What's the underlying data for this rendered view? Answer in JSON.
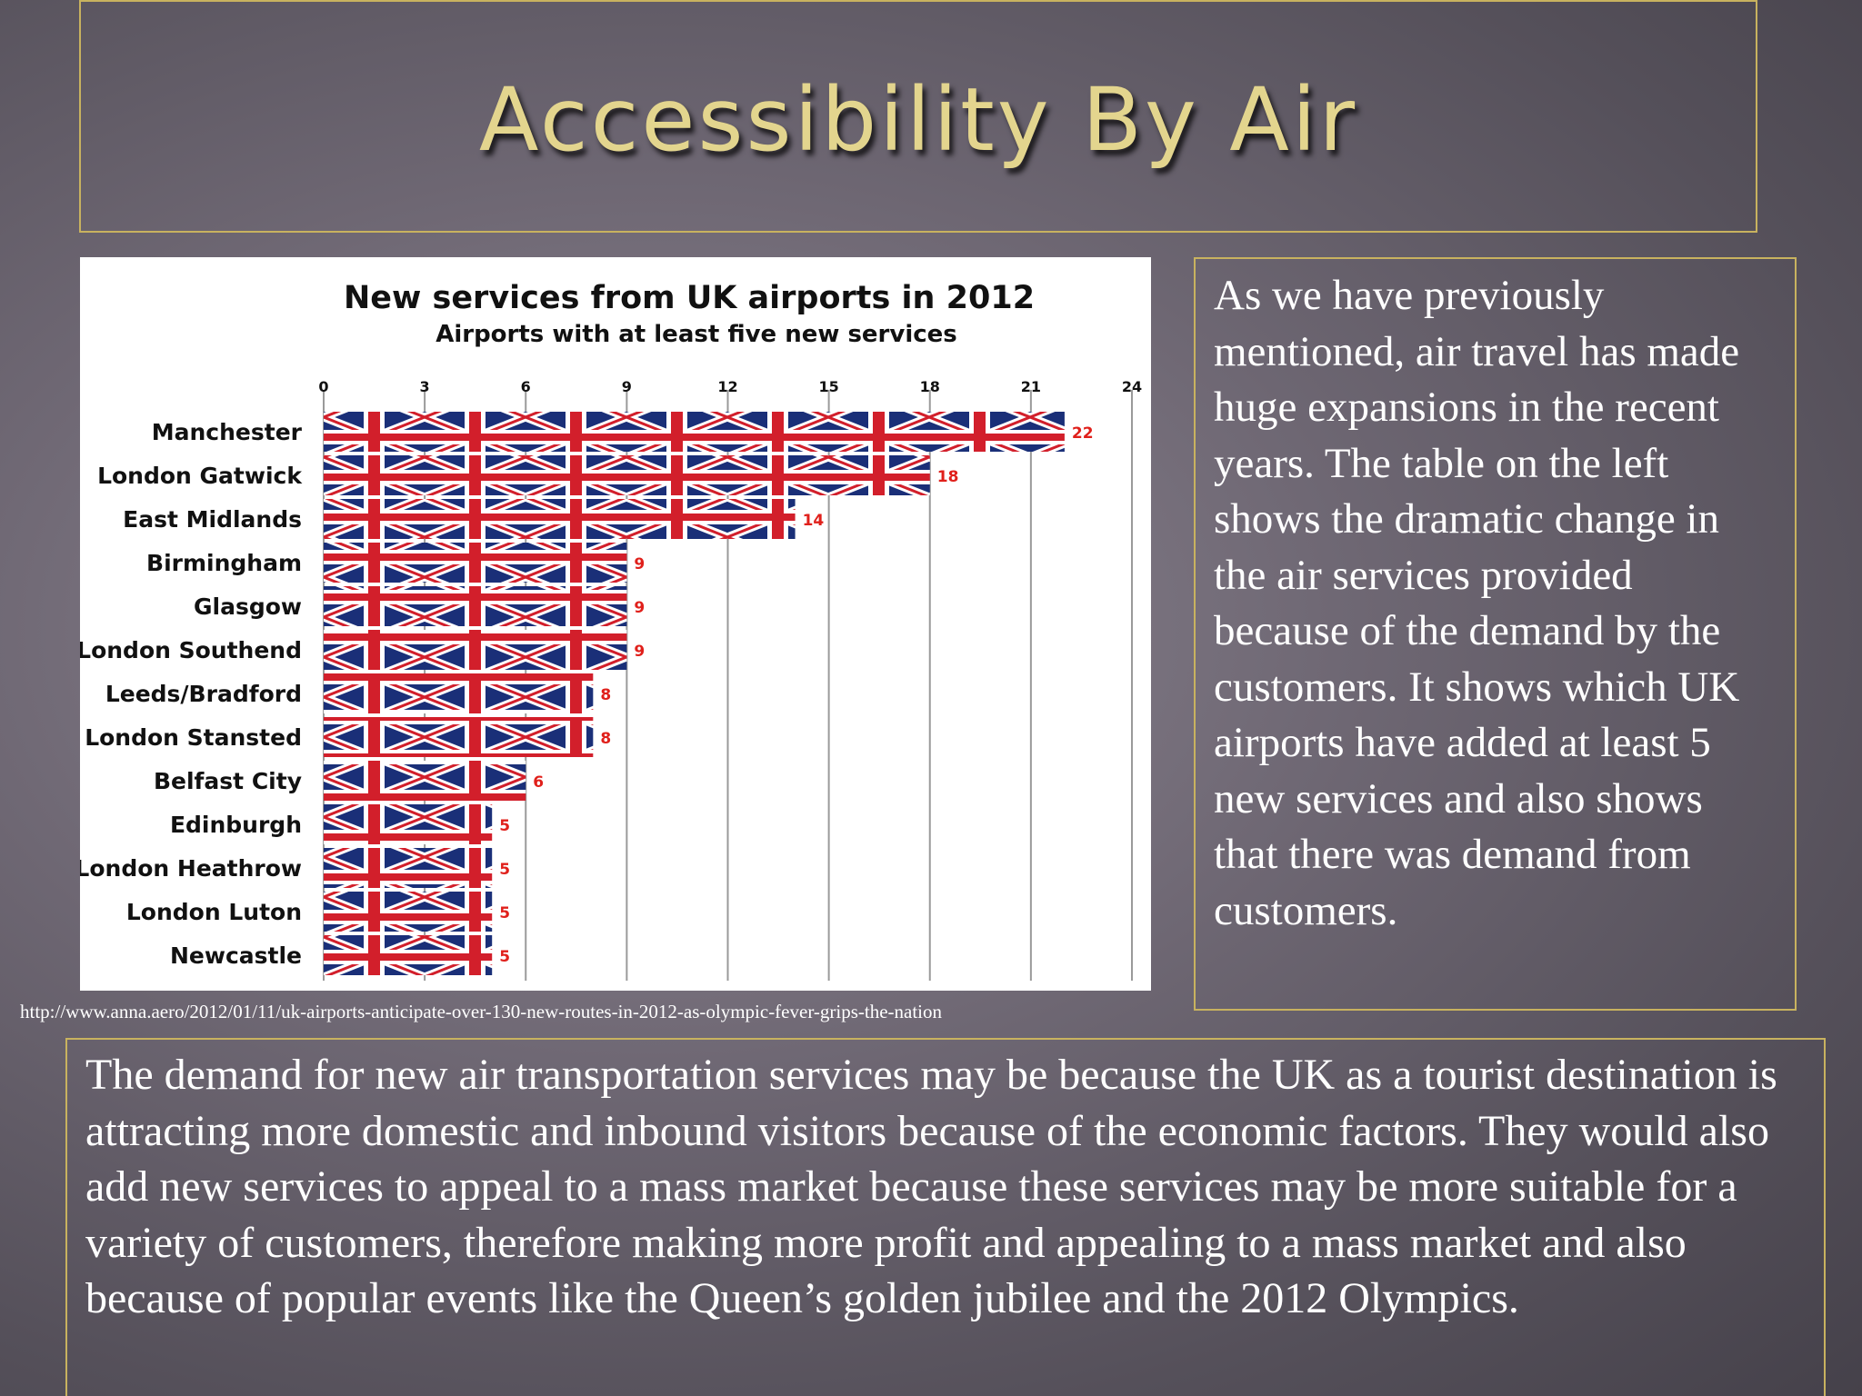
{
  "slide": {
    "title": "Accessibility By Air",
    "source_url": "http://www.anna.aero/2012/01/11/uk-airports-anticipate-over-130-new-routes-in-2012-as-olympic-fever-grips-the-nation",
    "side_paragraph": "As we have previously mentioned, air travel has made huge expansions in the recent years. The table on the left shows the dramatic change in the air services provided because of the demand by the customers. It shows which UK airports have added at least 5 new services and also shows that there was demand from customers.",
    "bottom_paragraph": "The demand for new air transportation services may be because the UK as a tourist destination is attracting more domestic and inbound visitors because of the economic factors. They would also add new services to appeal to a mass market because these services may be more suitable for a variety of customers, therefore making more profit and appealing to a mass market and also because of popular events like the Queen’s golden jubilee and the 2012 Olympics.",
    "colors": {
      "frame": "#c8b25f",
      "title": "#e3d58e",
      "value_label": "#e0201b",
      "flag_blue": "#1a2f78",
      "flag_red": "#d21f2b"
    }
  },
  "chart_data": {
    "type": "bar",
    "orientation": "horizontal",
    "title": "New services from UK airports in 2012",
    "subtitle": "Airports with at least five new services",
    "categories": [
      "Manchester",
      "London Gatwick",
      "East Midlands",
      "Birmingham",
      "Glasgow",
      "London Southend",
      "Leeds/Bradford",
      "London Stansted",
      "Belfast City",
      "Edinburgh",
      "London Heathrow",
      "London Luton",
      "Newcastle"
    ],
    "values": [
      22,
      18,
      14,
      9,
      9,
      9,
      8,
      8,
      6,
      5,
      5,
      5,
      5
    ],
    "x_ticks": [
      0,
      3,
      6,
      9,
      12,
      15,
      18,
      21,
      24
    ],
    "xlim": [
      0,
      24
    ],
    "grid": "vertical",
    "bar_fill": "union-flag-icon",
    "data_labels": true
  }
}
